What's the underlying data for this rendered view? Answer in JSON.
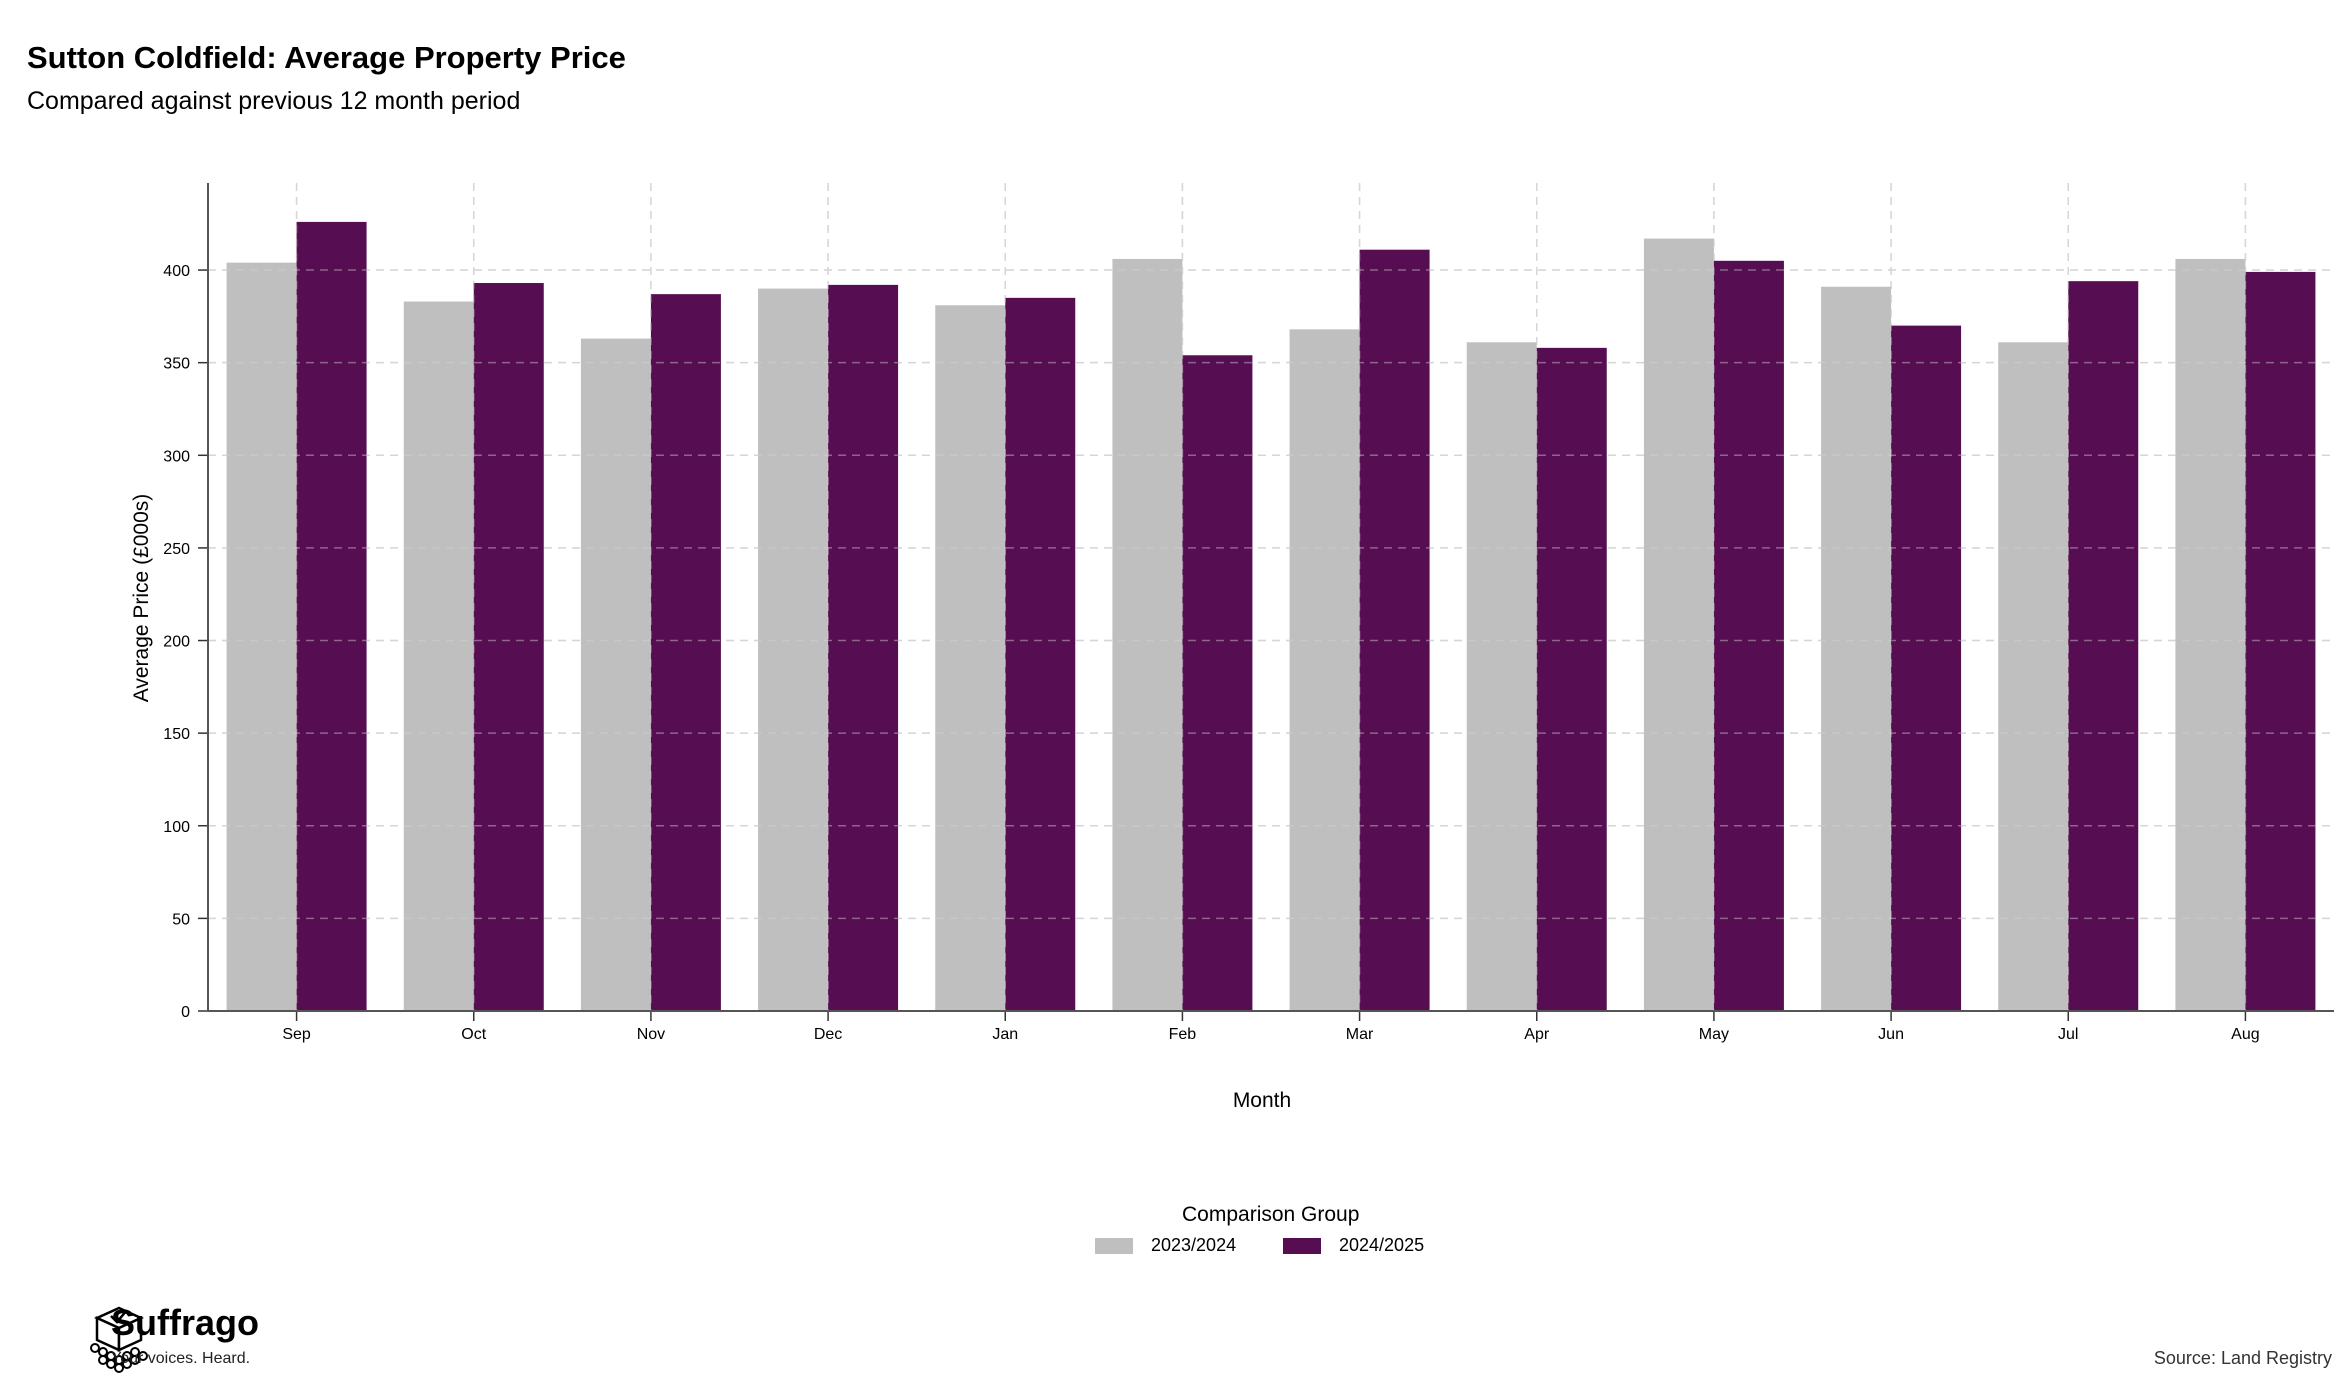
{
  "header": {
    "title": "Sutton Coldfield: Average Property Price",
    "subtitle": "Compared against previous 12 month period"
  },
  "legend": {
    "title": "Comparison Group",
    "items": [
      {
        "label": "2023/2024",
        "color": "#bfbfbf"
      },
      {
        "label": "2024/2025",
        "color": "#560d52"
      }
    ]
  },
  "footer": {
    "brand": "Suffrago",
    "tagline": "Your voices. Heard.",
    "source": "Source: Land Registry"
  },
  "chart_data": {
    "type": "bar",
    "title": "Sutton Coldfield: Average Property Price",
    "subtitle": "Compared against previous 12 month period",
    "xlabel": "Month",
    "ylabel": "Average Price (£000s)",
    "categories": [
      "Sep",
      "Oct",
      "Nov",
      "Dec",
      "Jan",
      "Feb",
      "Mar",
      "Apr",
      "May",
      "Jun",
      "Jul",
      "Aug"
    ],
    "series": [
      {
        "name": "2023/2024",
        "color": "#bfbfbf",
        "values": [
          404,
          383,
          363,
          390,
          381,
          406,
          368,
          361,
          417,
          391,
          361,
          406
        ]
      },
      {
        "name": "2024/2025",
        "color": "#560d52",
        "values": [
          426,
          393,
          387,
          392,
          385,
          354,
          411,
          358,
          405,
          370,
          394,
          399
        ]
      }
    ],
    "ylim": [
      0,
      447
    ],
    "yticks": [
      0,
      50,
      100,
      150,
      200,
      250,
      300,
      350,
      400
    ],
    "grid": true,
    "legend_position": "bottom"
  }
}
